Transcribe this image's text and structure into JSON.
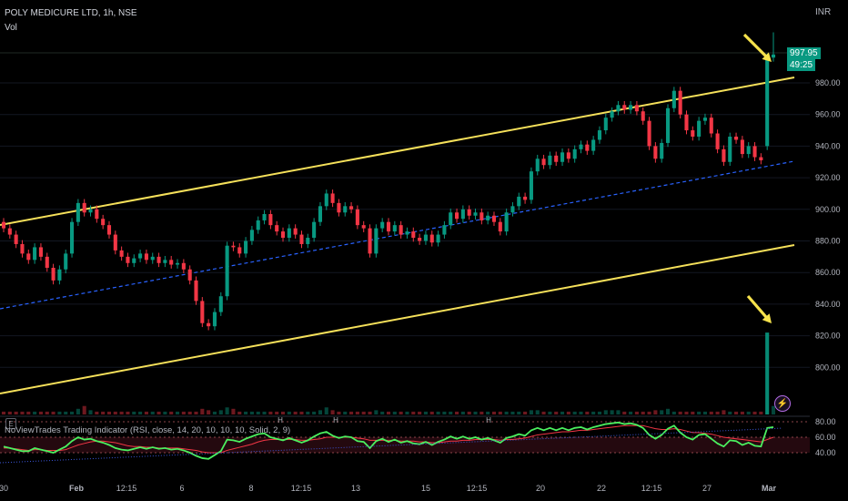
{
  "header": {
    "symbol": "POLY MEDICURE LTD, 1h, NSE",
    "volume_label": "Vol",
    "currency": "INR"
  },
  "price_tag": {
    "price": "997.95",
    "countdown": "49:25"
  },
  "indicator": {
    "legend": "NoViewTrades Trading Indicator (RSI, close, 14, 20, 10, 10, 10, Solid, 2, 9)",
    "markers": [
      "H",
      "H",
      "H"
    ]
  },
  "icons": {
    "logo": "E",
    "flash": "⚡"
  },
  "colors": {
    "up": "#089981",
    "down": "#f23645",
    "channel": "#f5e05a",
    "midline": "#2962ff",
    "rsi_fast": "#4bf05f",
    "rsi_slow": "#f23645",
    "arrow": "#f7e34c"
  },
  "chart_data": {
    "type": "candlestick",
    "y_ticks": [
      980,
      960,
      940,
      920,
      900,
      880,
      860,
      840,
      820,
      800
    ],
    "y_range": [
      800,
      1005
    ],
    "rsi_ticks": [
      80,
      60,
      40
    ],
    "x_labels": [
      "30",
      "Feb",
      "12:15",
      "6",
      "8",
      "12:15",
      "13",
      "15",
      "12:15",
      "20",
      "22",
      "12:15",
      "27",
      "Mar"
    ],
    "series": [
      {
        "c": 888,
        "u": 0
      },
      {
        "c": 884,
        "u": 0
      },
      {
        "c": 878,
        "u": 0
      },
      {
        "c": 872,
        "u": 0
      },
      {
        "c": 868,
        "u": 0
      },
      {
        "c": 876,
        "u": 1
      },
      {
        "c": 870,
        "u": 0
      },
      {
        "c": 863,
        "u": 0
      },
      {
        "c": 855,
        "u": 0
      },
      {
        "c": 862,
        "u": 1
      },
      {
        "c": 872,
        "u": 1
      },
      {
        "c": 892,
        "u": 1
      },
      {
        "c": 904,
        "u": 1
      },
      {
        "c": 898,
        "u": 0
      },
      {
        "c": 900,
        "u": 1
      },
      {
        "c": 894,
        "u": 0
      },
      {
        "c": 890,
        "u": 0
      },
      {
        "c": 884,
        "u": 0
      },
      {
        "c": 874,
        "u": 0
      },
      {
        "c": 870,
        "u": 0
      },
      {
        "c": 866,
        "u": 0
      },
      {
        "c": 869,
        "u": 1
      },
      {
        "c": 872,
        "u": 1
      },
      {
        "c": 868,
        "u": 0
      },
      {
        "c": 870,
        "u": 1
      },
      {
        "c": 866,
        "u": 0
      },
      {
        "c": 868,
        "u": 1
      },
      {
        "c": 865,
        "u": 0
      },
      {
        "c": 866,
        "u": 1
      },
      {
        "c": 862,
        "u": 0
      },
      {
        "c": 855,
        "u": 0
      },
      {
        "c": 842,
        "u": 0
      },
      {
        "c": 828,
        "u": 0
      },
      {
        "c": 826,
        "u": 0
      },
      {
        "c": 835,
        "u": 1
      },
      {
        "c": 845,
        "u": 1
      },
      {
        "c": 877,
        "u": 1
      },
      {
        "c": 876,
        "u": 0
      },
      {
        "c": 872,
        "u": 0
      },
      {
        "c": 880,
        "u": 1
      },
      {
        "c": 887,
        "u": 1
      },
      {
        "c": 893,
        "u": 1
      },
      {
        "c": 897,
        "u": 1
      },
      {
        "c": 890,
        "u": 0
      },
      {
        "c": 886,
        "u": 0
      },
      {
        "c": 882,
        "u": 0
      },
      {
        "c": 888,
        "u": 1
      },
      {
        "c": 884,
        "u": 0
      },
      {
        "c": 878,
        "u": 0
      },
      {
        "c": 882,
        "u": 1
      },
      {
        "c": 892,
        "u": 1
      },
      {
        "c": 902,
        "u": 1
      },
      {
        "c": 910,
        "u": 1
      },
      {
        "c": 904,
        "u": 0
      },
      {
        "c": 898,
        "u": 0
      },
      {
        "c": 902,
        "u": 1
      },
      {
        "c": 900,
        "u": 0
      },
      {
        "c": 890,
        "u": 0
      },
      {
        "c": 888,
        "u": 0
      },
      {
        "c": 872,
        "u": 0
      },
      {
        "c": 888,
        "u": 1
      },
      {
        "c": 892,
        "u": 1
      },
      {
        "c": 886,
        "u": 0
      },
      {
        "c": 890,
        "u": 1
      },
      {
        "c": 884,
        "u": 0
      },
      {
        "c": 886,
        "u": 1
      },
      {
        "c": 882,
        "u": 0
      },
      {
        "c": 880,
        "u": 0
      },
      {
        "c": 884,
        "u": 1
      },
      {
        "c": 879,
        "u": 0
      },
      {
        "c": 884,
        "u": 1
      },
      {
        "c": 890,
        "u": 1
      },
      {
        "c": 898,
        "u": 1
      },
      {
        "c": 894,
        "u": 0
      },
      {
        "c": 900,
        "u": 1
      },
      {
        "c": 896,
        "u": 0
      },
      {
        "c": 898,
        "u": 1
      },
      {
        "c": 893,
        "u": 0
      },
      {
        "c": 896,
        "u": 1
      },
      {
        "c": 892,
        "u": 0
      },
      {
        "c": 886,
        "u": 0
      },
      {
        "c": 898,
        "u": 1
      },
      {
        "c": 902,
        "u": 1
      },
      {
        "c": 908,
        "u": 1
      },
      {
        "c": 906,
        "u": 0
      },
      {
        "c": 924,
        "u": 1
      },
      {
        "c": 932,
        "u": 1
      },
      {
        "c": 928,
        "u": 0
      },
      {
        "c": 934,
        "u": 1
      },
      {
        "c": 930,
        "u": 0
      },
      {
        "c": 936,
        "u": 1
      },
      {
        "c": 932,
        "u": 0
      },
      {
        "c": 938,
        "u": 1
      },
      {
        "c": 941,
        "u": 1
      },
      {
        "c": 937,
        "u": 0
      },
      {
        "c": 944,
        "u": 1
      },
      {
        "c": 950,
        "u": 1
      },
      {
        "c": 958,
        "u": 1
      },
      {
        "c": 962,
        "u": 1
      },
      {
        "c": 966,
        "u": 1
      },
      {
        "c": 963,
        "u": 0
      },
      {
        "c": 966,
        "u": 1
      },
      {
        "c": 962,
        "u": 0
      },
      {
        "c": 956,
        "u": 0
      },
      {
        "c": 940,
        "u": 0
      },
      {
        "c": 932,
        "u": 0
      },
      {
        "c": 942,
        "u": 1
      },
      {
        "c": 964,
        "u": 1
      },
      {
        "c": 975,
        "u": 1
      },
      {
        "c": 960,
        "u": 0
      },
      {
        "c": 950,
        "u": 0
      },
      {
        "c": 946,
        "u": 0
      },
      {
        "c": 956,
        "u": 1
      },
      {
        "c": 958,
        "u": 1
      },
      {
        "c": 948,
        "u": 0
      },
      {
        "c": 938,
        "u": 0
      },
      {
        "c": 930,
        "u": 0
      },
      {
        "c": 946,
        "u": 1
      },
      {
        "c": 944,
        "u": 0
      },
      {
        "c": 935,
        "u": 0
      },
      {
        "c": 940,
        "u": 1
      },
      {
        "c": 933,
        "u": 0
      },
      {
        "c": 931,
        "u": 0
      },
      {
        "c": 996,
        "u": 1
      },
      {
        "c": 997.95,
        "u": 1
      }
    ],
    "volume": [
      2,
      2,
      2,
      2,
      2,
      2,
      2,
      2,
      2,
      2,
      2,
      2,
      4,
      6,
      3,
      2,
      2,
      2,
      2,
      2,
      2,
      2,
      2,
      2,
      2,
      2,
      2,
      2,
      2,
      2,
      2,
      2,
      4,
      3,
      2,
      3,
      5,
      4,
      2,
      2,
      2,
      2,
      2,
      2,
      2,
      2,
      2,
      2,
      2,
      2,
      2,
      3,
      5,
      3,
      2,
      2,
      2,
      2,
      2,
      2,
      3,
      2,
      2,
      2,
      2,
      2,
      2,
      2,
      2,
      2,
      2,
      2,
      2,
      2,
      2,
      2,
      2,
      2,
      2,
      2,
      2,
      2,
      2,
      2,
      2,
      3,
      3,
      2,
      2,
      2,
      2,
      2,
      2,
      2,
      2,
      2,
      2,
      3,
      3,
      3,
      2,
      2,
      2,
      2,
      2,
      3,
      3,
      4,
      2,
      2,
      2,
      2,
      2,
      2,
      2,
      2,
      3,
      2,
      2,
      2,
      2,
      2,
      2,
      58,
      6
    ],
    "rsi": [
      48,
      46,
      44,
      42,
      42,
      46,
      44,
      42,
      40,
      44,
      48,
      55,
      60,
      57,
      58,
      55,
      53,
      50,
      46,
      44,
      43,
      45,
      47,
      45,
      47,
      45,
      46,
      44,
      45,
      43,
      40,
      36,
      33,
      32,
      37,
      42,
      57,
      56,
      54,
      58,
      61,
      64,
      65,
      60,
      58,
      56,
      59,
      56,
      53,
      56,
      61,
      65,
      67,
      62,
      59,
      61,
      60,
      55,
      54,
      46,
      55,
      58,
      54,
      57,
      53,
      55,
      52,
      51,
      54,
      50,
      54,
      57,
      61,
      58,
      61,
      58,
      60,
      57,
      59,
      56,
      53,
      59,
      61,
      64,
      62,
      69,
      72,
      69,
      72,
      69,
      72,
      69,
      72,
      73,
      70,
      73,
      75,
      77,
      78,
      79,
      77,
      78,
      76,
      72,
      63,
      58,
      63,
      71,
      75,
      66,
      60,
      57,
      63,
      64,
      58,
      52,
      48,
      56,
      55,
      50,
      53,
      49,
      48,
      72,
      73
    ],
    "rsi_signal": [
      46,
      46,
      45,
      44,
      43,
      44,
      44,
      43,
      43,
      43,
      44,
      47,
      50,
      52,
      54,
      55,
      55,
      54,
      53,
      51,
      49,
      48,
      48,
      47,
      47,
      46,
      46,
      46,
      46,
      45,
      44,
      43,
      41,
      40,
      40,
      40,
      43,
      45,
      47,
      49,
      51,
      54,
      56,
      57,
      57,
      57,
      57,
      57,
      56,
      56,
      57,
      58,
      60,
      60,
      60,
      60,
      60,
      59,
      58,
      56,
      56,
      56,
      56,
      56,
      55,
      55,
      55,
      54,
      54,
      53,
      53,
      54,
      55,
      55,
      56,
      56,
      57,
      57,
      57,
      57,
      56,
      57,
      57,
      58,
      59,
      61,
      63,
      64,
      65,
      66,
      67,
      67,
      68,
      69,
      69,
      70,
      71,
      72,
      73,
      74,
      75,
      75,
      75,
      75,
      73,
      71,
      70,
      70,
      71,
      70,
      68,
      66,
      66,
      65,
      64,
      62,
      60,
      59,
      58,
      57,
      56,
      55,
      54,
      57,
      60
    ]
  }
}
